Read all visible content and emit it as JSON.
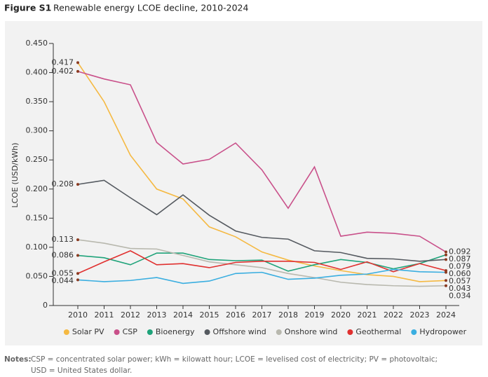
{
  "chart_data": {
    "type": "line",
    "figure_label": "Figure S1",
    "title": "Renewable energy LCOE decline, 2010-2024",
    "y_label": "LCOE (USD/kWh)",
    "categories": [
      "2010",
      "2011",
      "2012",
      "2013",
      "2014",
      "2015",
      "2016",
      "2017",
      "2018",
      "2019",
      "2020",
      "2021",
      "2022",
      "2023",
      "2024"
    ],
    "ylim": [
      0,
      0.45
    ],
    "yticks": [
      0,
      {
        "value": 0.05,
        "label": "0.050"
      },
      {
        "value": 0.1,
        "label": "0.100"
      },
      {
        "value": 0.15,
        "label": "0.150"
      },
      {
        "value": 0.2,
        "label": "0.200"
      },
      {
        "value": 0.25,
        "label": "0.250"
      },
      {
        "value": 0.3,
        "label": "0.300"
      },
      {
        "value": 0.35,
        "label": "0.350"
      },
      {
        "value": 0.4,
        "label": "0.400"
      },
      {
        "value": 0.45,
        "label": "0.450"
      }
    ],
    "legend": "bottom",
    "series": [
      {
        "name": "Solar PV",
        "color": "#f5b942",
        "values": [
          0.417,
          0.35,
          0.258,
          0.2,
          0.183,
          0.135,
          0.118,
          0.092,
          0.078,
          0.068,
          0.06,
          0.053,
          0.05,
          0.041,
          0.043
        ],
        "value_labels": [
          "0.417",
          null,
          null,
          null,
          null,
          null,
          null,
          null,
          null,
          null,
          null,
          null,
          null,
          null,
          "0.043"
        ]
      },
      {
        "name": "CSP",
        "color": "#c9508a",
        "values": [
          0.402,
          0.389,
          0.379,
          0.28,
          0.243,
          0.251,
          0.279,
          0.233,
          0.167,
          0.238,
          0.119,
          0.126,
          0.124,
          0.119,
          0.092
        ],
        "value_labels": [
          "0.402",
          null,
          null,
          null,
          null,
          null,
          null,
          null,
          null,
          null,
          null,
          null,
          null,
          null,
          "0.092"
        ]
      },
      {
        "name": "Bioenergy",
        "color": "#1fa37a",
        "values": [
          0.086,
          0.082,
          0.07,
          0.09,
          0.09,
          0.079,
          0.077,
          0.078,
          0.059,
          0.07,
          0.079,
          0.074,
          0.063,
          0.072,
          0.087
        ],
        "value_labels": [
          "0.086",
          null,
          null,
          null,
          null,
          null,
          null,
          null,
          null,
          null,
          null,
          null,
          null,
          null,
          "0.087"
        ]
      },
      {
        "name": "Offshore wind",
        "color": "#555a60",
        "values": [
          0.208,
          0.215,
          0.185,
          0.156,
          0.19,
          0.155,
          0.128,
          0.117,
          0.114,
          0.094,
          0.091,
          0.081,
          0.08,
          0.076,
          0.079
        ],
        "value_labels": [
          "0.208",
          null,
          null,
          null,
          null,
          null,
          null,
          null,
          null,
          null,
          null,
          null,
          null,
          null,
          "0.079"
        ]
      },
      {
        "name": "Onshore wind",
        "color": "#b8b8ae",
        "values": [
          0.113,
          0.107,
          0.098,
          0.097,
          0.086,
          0.075,
          0.07,
          0.065,
          0.055,
          0.048,
          0.04,
          0.036,
          0.034,
          0.033,
          0.034
        ],
        "value_labels": [
          "0.113",
          null,
          null,
          null,
          null,
          null,
          null,
          null,
          null,
          null,
          null,
          null,
          null,
          null,
          "0.034"
        ]
      },
      {
        "name": "Geothermal",
        "color": "#e0302f",
        "values": [
          0.055,
          0.075,
          0.094,
          0.07,
          0.072,
          0.065,
          0.074,
          0.076,
          0.076,
          0.074,
          0.062,
          0.075,
          0.058,
          0.072,
          0.06
        ],
        "value_labels": [
          "0.055",
          null,
          null,
          null,
          null,
          null,
          null,
          null,
          null,
          null,
          null,
          null,
          null,
          null,
          "0.060"
        ]
      },
      {
        "name": "Hydropower",
        "color": "#3aaee0",
        "values": [
          0.044,
          0.041,
          0.043,
          0.048,
          0.038,
          0.042,
          0.055,
          0.057,
          0.045,
          0.047,
          0.052,
          0.054,
          0.062,
          0.058,
          0.057
        ],
        "value_labels": [
          "0.044",
          null,
          null,
          null,
          null,
          null,
          null,
          null,
          null,
          null,
          null,
          null,
          null,
          null,
          "0.057"
        ]
      }
    ]
  },
  "notes": {
    "label": "Notes:",
    "lines": [
      "CSP = concentrated solar power; kWh = kilowatt hour; LCOE = levelised cost of electricity; PV = photovoltaic;",
      "USD = United States dollar."
    ]
  }
}
